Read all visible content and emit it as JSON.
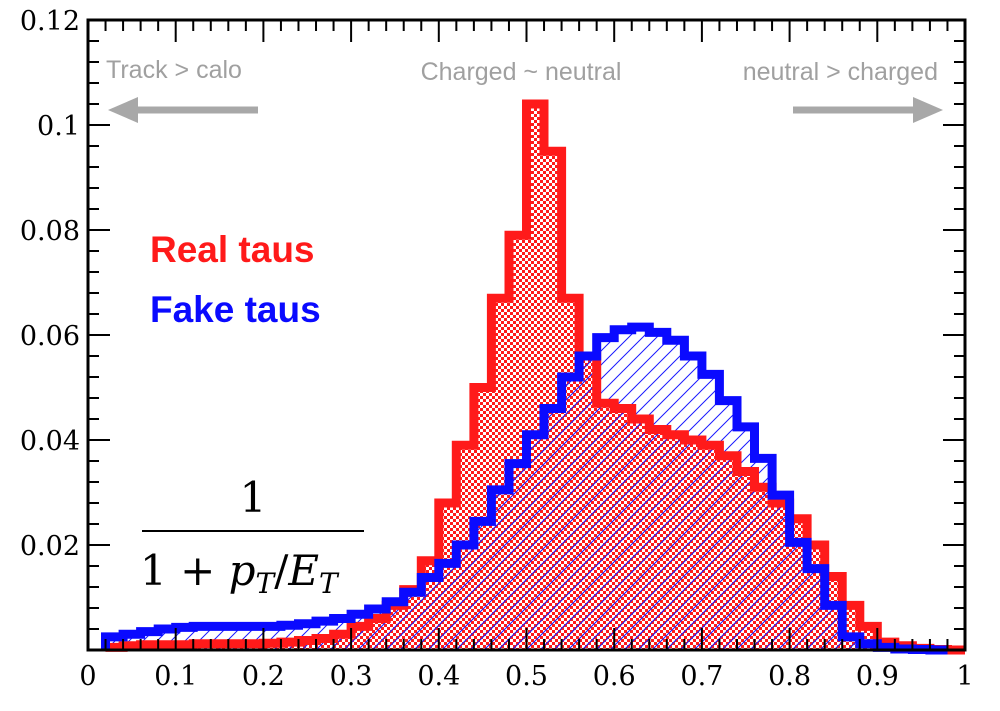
{
  "chart_data": {
    "type": "histogram",
    "title": "",
    "xlabel": "",
    "ylabel": "",
    "xlim": [
      0,
      1
    ],
    "ylim": [
      0,
      0.12
    ],
    "grid": false,
    "legend_placement": "middle-left",
    "x_ticks": [
      0,
      0.1,
      0.2,
      0.3,
      0.4,
      0.5,
      0.6,
      0.7,
      0.8,
      0.9,
      1
    ],
    "x_tick_labels": [
      "0",
      "0.1",
      "0.2",
      "0.3",
      "0.4",
      "0.5",
      "0.6",
      "0.7",
      "0.8",
      "0.9",
      "1"
    ],
    "y_ticks": [
      0.02,
      0.04,
      0.06,
      0.08,
      0.1,
      0.12
    ],
    "y_tick_labels": [
      "0.02",
      "0.04",
      "0.06",
      "0.08",
      "0.1",
      "0.12"
    ],
    "bin_edges_start": 0.02,
    "bin_width": 0.02,
    "series": [
      {
        "name": "Real taus",
        "color": "#ff1a1a",
        "fill": "checkered",
        "values": [
          0.0005,
          0.0008,
          0.001,
          0.001,
          0.001,
          0.0012,
          0.0012,
          0.0012,
          0.0012,
          0.0013,
          0.0015,
          0.0018,
          0.0022,
          0.003,
          0.0045,
          0.006,
          0.0085,
          0.0115,
          0.017,
          0.028,
          0.039,
          0.05,
          0.067,
          0.079,
          0.104,
          0.095,
          0.067,
          0.056,
          0.047,
          0.046,
          0.044,
          0.042,
          0.041,
          0.04,
          0.039,
          0.037,
          0.034,
          0.031,
          0.028,
          0.025,
          0.02,
          0.014,
          0.0085,
          0.0045,
          0.0015,
          0.0008,
          0.0003,
          0.0001,
          0.0
        ]
      },
      {
        "name": "Fake taus",
        "color": "#0a0aff",
        "fill": "hatched",
        "values": [
          0.0025,
          0.003,
          0.0035,
          0.004,
          0.0043,
          0.0045,
          0.0045,
          0.0045,
          0.0045,
          0.0045,
          0.0047,
          0.005,
          0.0055,
          0.006,
          0.0068,
          0.0078,
          0.0092,
          0.011,
          0.0138,
          0.0165,
          0.02,
          0.0245,
          0.0305,
          0.0355,
          0.041,
          0.046,
          0.052,
          0.056,
          0.0595,
          0.061,
          0.0615,
          0.0605,
          0.059,
          0.056,
          0.0525,
          0.0475,
          0.0425,
          0.0365,
          0.0295,
          0.0205,
          0.0155,
          0.0085,
          0.0025,
          0.0012,
          0.0005,
          0.0002,
          0.0001,
          0.0
        ]
      }
    ],
    "annotations": {
      "left": "Track > calo",
      "center": "Charged ~ neutral",
      "right": "neutral > charged",
      "formula_numerator": "1",
      "formula_denominator": "1 + pT/ET"
    }
  }
}
